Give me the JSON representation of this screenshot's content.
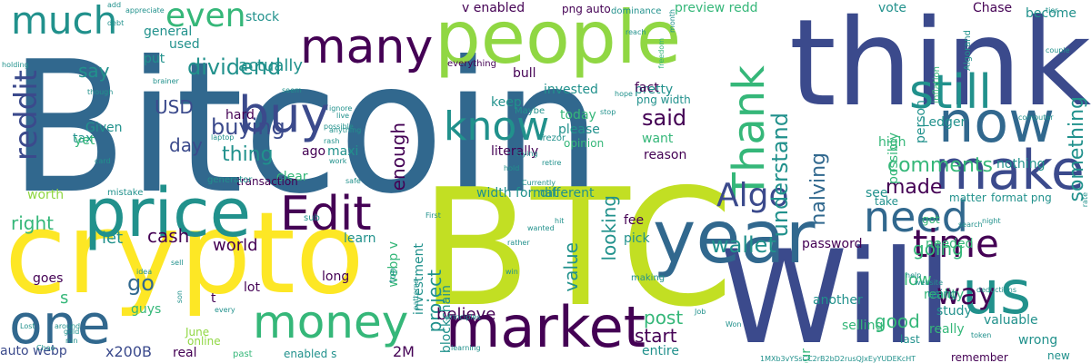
{
  "palette": {
    "dark_purple": "#440154",
    "indigo": "#3b4a8c",
    "blue": "#31688e",
    "teal": "#21918c",
    "green": "#35b779",
    "lime": "#90d743",
    "yellow_green": "#c2df23",
    "yellow": "#fde725"
  },
  "words": [
    {
      "text": "Bitcoin"
    },
    {
      "text": "crypto"
    },
    {
      "text": "BTC"
    },
    {
      "text": "think"
    },
    {
      "text": "Will"
    },
    {
      "text": "people"
    },
    {
      "text": "year"
    },
    {
      "text": "market"
    },
    {
      "text": "price"
    },
    {
      "text": "make"
    },
    {
      "text": "now"
    },
    {
      "text": "one"
    },
    {
      "text": "us"
    },
    {
      "text": "money"
    },
    {
      "text": "still"
    },
    {
      "text": "Thank"
    },
    {
      "text": "many"
    },
    {
      "text": "Edit"
    },
    {
      "text": "buy"
    },
    {
      "text": "much"
    },
    {
      "text": "need"
    },
    {
      "text": "time"
    },
    {
      "text": "reddit"
    },
    {
      "text": "know"
    },
    {
      "text": "even"
    },
    {
      "text": "Algo"
    },
    {
      "text": "way"
    },
    {
      "text": "wallet"
    },
    {
      "text": "buying"
    },
    {
      "text": "dividend"
    },
    {
      "text": "said"
    },
    {
      "text": "understand"
    },
    {
      "text": "something"
    },
    {
      "text": "comments"
    },
    {
      "text": "made"
    },
    {
      "text": "halving"
    },
    {
      "text": "enough"
    },
    {
      "text": "USD"
    },
    {
      "text": "thing"
    },
    {
      "text": "day"
    },
    {
      "text": "cash"
    },
    {
      "text": "go"
    },
    {
      "text": "s"
    },
    {
      "text": "value"
    },
    {
      "text": "looking"
    },
    {
      "text": "project"
    },
    {
      "text": "going"
    },
    {
      "text": "low"
    },
    {
      "text": "good"
    },
    {
      "text": "post"
    },
    {
      "text": "start"
    },
    {
      "text": "believe"
    },
    {
      "text": "right"
    },
    {
      "text": "say"
    },
    {
      "text": "world"
    },
    {
      "text": "let"
    },
    {
      "text": "actually"
    },
    {
      "text": "stock"
    },
    {
      "text": "v enabled"
    },
    {
      "text": "png auto"
    },
    {
      "text": "preview redd"
    },
    {
      "text": "Chase"
    },
    {
      "text": "vote"
    },
    {
      "text": "become"
    },
    {
      "text": "invested"
    },
    {
      "text": "pretty"
    },
    {
      "text": "bull"
    },
    {
      "text": "keep"
    },
    {
      "text": "fact"
    },
    {
      "text": "png width"
    },
    {
      "text": "today"
    },
    {
      "text": "please"
    },
    {
      "text": "literally"
    },
    {
      "text": "want"
    },
    {
      "text": "opinion"
    },
    {
      "text": "reason"
    },
    {
      "text": "width format"
    },
    {
      "text": "different"
    },
    {
      "text": "fee"
    },
    {
      "text": "pick"
    },
    {
      "text": "webp v"
    },
    {
      "text": "investment"
    },
    {
      "text": "blockchain"
    },
    {
      "text": "password"
    },
    {
      "text": "another"
    },
    {
      "text": "hour"
    },
    {
      "text": "needed"
    },
    {
      "text": "selling"
    },
    {
      "text": "reality"
    },
    {
      "text": "valuable"
    },
    {
      "text": "study"
    },
    {
      "text": "really"
    },
    {
      "text": "wrong"
    },
    {
      "text": "new"
    },
    {
      "text": "last"
    },
    {
      "text": "remember"
    },
    {
      "text": "Ledger"
    },
    {
      "text": "person"
    },
    {
      "text": "possibly"
    },
    {
      "text": "high"
    },
    {
      "text": "nothing"
    },
    {
      "text": "see"
    },
    {
      "text": "take"
    },
    {
      "text": "matter"
    },
    {
      "text": "got"
    },
    {
      "text": "format png"
    },
    {
      "text": "using"
    },
    {
      "text": "tax"
    },
    {
      "text": "yet"
    },
    {
      "text": "Given"
    },
    {
      "text": "general"
    },
    {
      "text": "used"
    },
    {
      "text": "put"
    },
    {
      "text": "maxi"
    },
    {
      "text": "hard"
    },
    {
      "text": "ago"
    },
    {
      "text": "clear"
    },
    {
      "text": "worth"
    },
    {
      "text": "mistake"
    },
    {
      "text": "transaction"
    },
    {
      "text": "learn"
    },
    {
      "text": "long"
    },
    {
      "text": "goes"
    },
    {
      "text": "guys"
    },
    {
      "text": "t"
    },
    {
      "text": "lot"
    },
    {
      "text": "auto webp"
    },
    {
      "text": "x200B"
    },
    {
      "text": "real"
    },
    {
      "text": "June"
    },
    {
      "text": "online"
    },
    {
      "text": "past"
    },
    {
      "text": "enabled s"
    },
    {
      "text": "2M"
    },
    {
      "text": "entire"
    },
    {
      "text": "everything"
    },
    {
      "text": "dominance"
    },
    {
      "text": "Algorand"
    },
    {
      "text": "inflation"
    },
    {
      "text": "Trezor"
    },
    {
      "text": "Maybe"
    },
    {
      "text": "generator"
    },
    {
      "text": "laptop"
    },
    {
      "text": "anything"
    },
    {
      "text": "ignore"
    },
    {
      "text": "live"
    },
    {
      "text": "work"
    },
    {
      "text": "sub"
    },
    {
      "text": "idea"
    },
    {
      "text": "sell"
    },
    {
      "text": "learning"
    },
    {
      "text": "making"
    },
    {
      "text": "top"
    },
    {
      "text": "Lost"
    },
    {
      "text": "Choo"
    },
    {
      "text": "around"
    },
    {
      "text": "gold"
    },
    {
      "text": "run"
    },
    {
      "text": "add"
    },
    {
      "text": "debt"
    },
    {
      "text": "appreciate"
    },
    {
      "text": "holding"
    },
    {
      "text": "though"
    },
    {
      "text": "card"
    },
    {
      "text": "brainer"
    },
    {
      "text": "month"
    },
    {
      "text": "reach"
    },
    {
      "text": "freedom"
    },
    {
      "text": "tier"
    },
    {
      "text": "couple"
    },
    {
      "text": "computer"
    },
    {
      "text": "rate"
    },
    {
      "text": "search"
    },
    {
      "text": "night"
    },
    {
      "text": "website"
    },
    {
      "text": "help"
    },
    {
      "text": "deductions"
    },
    {
      "text": "token"
    },
    {
      "text": "Job"
    },
    {
      "text": "Won"
    },
    {
      "text": "principles"
    },
    {
      "text": "patterns"
    },
    {
      "text": "win"
    },
    {
      "text": "wanted"
    },
    {
      "text": "rather"
    },
    {
      "text": "First"
    },
    {
      "text": "trying"
    },
    {
      "text": "Currently"
    },
    {
      "text": "hit"
    },
    {
      "text": "hold"
    },
    {
      "text": "retire"
    },
    {
      "text": "stop"
    },
    {
      "text": "hope"
    },
    {
      "text": "seem"
    },
    {
      "text": "possible"
    },
    {
      "text": "rash"
    },
    {
      "text": "safe"
    },
    {
      "text": "every"
    },
    {
      "text": "son"
    },
    {
      "text": "1MXb3vYSsCC2rB2bD2rusQJxEyYUDEKcHT"
    }
  ]
}
